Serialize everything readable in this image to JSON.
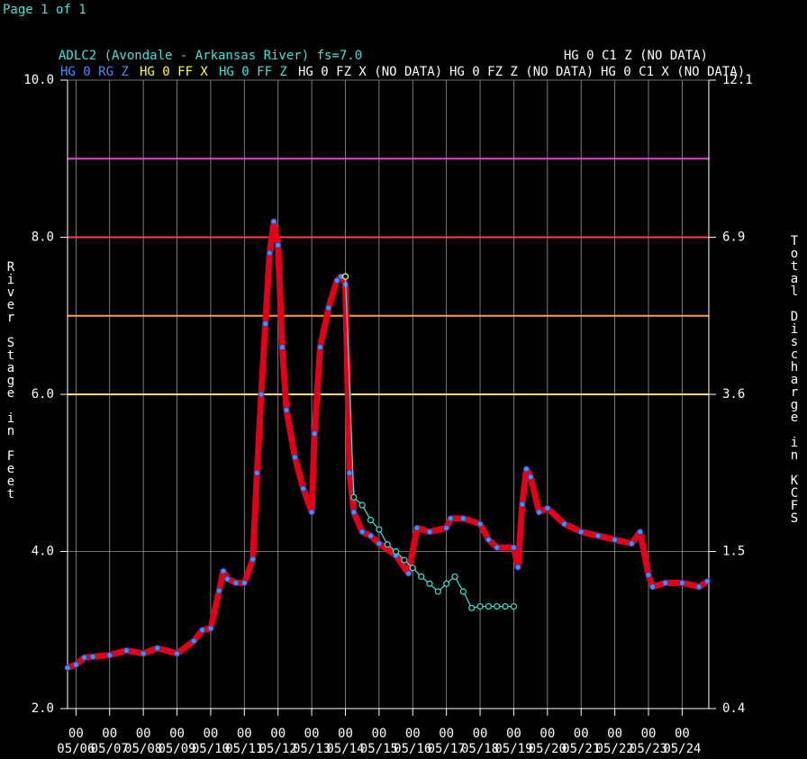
{
  "chart_data": {
    "type": "line",
    "page": "Page 1 of 1",
    "title": "ADLC2 (Avondale - Arkansas River) fs=7.0",
    "y_label": "River Stage in Feet",
    "y2_label": "Total Discharge in KCFS",
    "xlim": [
      "05/05 18",
      "05/24 19"
    ],
    "xticks": [
      {
        "hour": "00",
        "date": "05/06"
      },
      {
        "hour": "00",
        "date": "05/07"
      },
      {
        "hour": "00",
        "date": "05/08"
      },
      {
        "hour": "00",
        "date": "05/09"
      },
      {
        "hour": "00",
        "date": "05/10"
      },
      {
        "hour": "00",
        "date": "05/11"
      },
      {
        "hour": "00",
        "date": "05/12"
      },
      {
        "hour": "00",
        "date": "05/13"
      },
      {
        "hour": "00",
        "date": "05/14"
      },
      {
        "hour": "00",
        "date": "05/15"
      },
      {
        "hour": "00",
        "date": "05/16"
      },
      {
        "hour": "00",
        "date": "05/17"
      },
      {
        "hour": "00",
        "date": "05/18"
      },
      {
        "hour": "00",
        "date": "05/19"
      },
      {
        "hour": "00",
        "date": "05/20"
      },
      {
        "hour": "00",
        "date": "05/21"
      },
      {
        "hour": "00",
        "date": "05/22"
      },
      {
        "hour": "00",
        "date": "05/23"
      },
      {
        "hour": "00",
        "date": "05/24"
      }
    ],
    "ylim": [
      2,
      10
    ],
    "yticks": [
      {
        "value": 2,
        "label": "2.0"
      },
      {
        "value": 4,
        "label": "4.0"
      },
      {
        "value": 6,
        "label": "6.0"
      },
      {
        "value": 8,
        "label": "8.0"
      },
      {
        "value": 10,
        "label": "10.0"
      }
    ],
    "y2lim": [
      0.4,
      12.1
    ],
    "y2ticks": [
      0.4,
      1.5,
      3.6,
      6.9,
      12.1
    ],
    "grid": true,
    "thresholds": [
      {
        "value": 9,
        "color": "#e040e0"
      },
      {
        "value": 8,
        "color": "#ff4040"
      },
      {
        "value": 7,
        "color": "#ffa030"
      },
      {
        "value": 6,
        "color": "#ffe070"
      }
    ],
    "series": [
      {
        "name": "HG 0 RG Z",
        "color": "#4a8cff",
        "line_color": "#e0001a",
        "x": [
          "05/05 18",
          "05/06 00",
          "05/06 06",
          "05/06 12",
          "05/07 00",
          "05/07 12",
          "05/08 00",
          "05/08 10",
          "05/09 00",
          "05/09 12",
          "05/09 18",
          "05/10 00",
          "05/10 06",
          "05/10 09",
          "05/10 12",
          "05/10 18",
          "05/11 00",
          "05/11 06",
          "05/11 09",
          "05/11 12",
          "05/11 15",
          "05/11 18",
          "05/11 21",
          "05/12 00",
          "05/12 03",
          "05/12 06",
          "05/12 12",
          "05/12 18",
          "05/13 00",
          "05/13 02",
          "05/13 06",
          "05/13 12",
          "05/13 18",
          "05/13 21",
          "05/14 00",
          "05/14 03",
          "05/14 06",
          "05/14 12",
          "05/14 18",
          "05/15 00",
          "05/15 12",
          "05/15 21",
          "05/16 03",
          "05/16 12",
          "05/17 00",
          "05/17 03",
          "05/17 12",
          "05/18 00",
          "05/18 06",
          "05/18 12",
          "05/19 00",
          "05/19 03",
          "05/19 06",
          "05/19 09",
          "05/19 12",
          "05/19 18",
          "05/20 00",
          "05/20 12",
          "05/21 00",
          "05/21 12",
          "05/22 00",
          "05/22 12",
          "05/22 18",
          "05/23 00",
          "05/23 03",
          "05/23 12",
          "05/24 00",
          "05/24 12",
          "05/24 18"
        ],
        "values": [
          2.52,
          2.56,
          2.65,
          2.66,
          2.68,
          2.74,
          2.7,
          2.77,
          2.7,
          2.86,
          3.0,
          3.02,
          3.5,
          3.75,
          3.65,
          3.6,
          3.6,
          3.9,
          5.0,
          6.0,
          6.9,
          7.8,
          8.2,
          7.9,
          6.6,
          5.8,
          5.2,
          4.8,
          4.5,
          5.5,
          6.6,
          7.1,
          7.45,
          7.5,
          7.4,
          5.0,
          4.5,
          4.25,
          4.2,
          4.1,
          3.95,
          3.72,
          4.3,
          4.25,
          4.3,
          4.42,
          4.42,
          4.35,
          4.15,
          4.05,
          4.05,
          3.8,
          4.6,
          5.05,
          4.95,
          4.5,
          4.55,
          4.35,
          4.25,
          4.2,
          4.15,
          4.1,
          4.25,
          3.7,
          3.55,
          3.6,
          3.6,
          3.55,
          3.62
        ]
      },
      {
        "name": "HG 0 FF X",
        "color": "#ffff40",
        "x": [
          "05/14 00"
        ],
        "values": [
          7.5
        ]
      },
      {
        "name": "HG 0 FF Z",
        "color": "#40e0d8",
        "x": [
          "05/14 00",
          "05/14 06",
          "05/14 12",
          "05/14 18",
          "05/15 00",
          "05/15 06",
          "05/15 12",
          "05/15 18",
          "05/16 00",
          "05/16 06",
          "05/16 12",
          "05/16 18",
          "05/17 00",
          "05/17 06",
          "05/17 12",
          "05/17 18",
          "05/18 00",
          "05/18 06",
          "05/18 12",
          "05/18 18",
          "05/19 00"
        ],
        "values": [
          7.5,
          4.69,
          4.59,
          4.4,
          4.28,
          4.09,
          4.0,
          3.89,
          3.79,
          3.68,
          3.59,
          3.49,
          3.59,
          3.68,
          3.49,
          3.28,
          3.3,
          3.3,
          3.3,
          3.3,
          3.3
        ]
      },
      {
        "name": "HG 0 FZ X (NO DATA)",
        "color": "#ffffff"
      },
      {
        "name": "HG 0 FZ Z (NO DATA)",
        "color": "#ffffff"
      },
      {
        "name": "HG 0 C1 X (NO DATA)",
        "color": "#ffffff"
      },
      {
        "name": "HG 0 C1 Z (NO DATA)",
        "color": "#ffffff"
      }
    ]
  }
}
